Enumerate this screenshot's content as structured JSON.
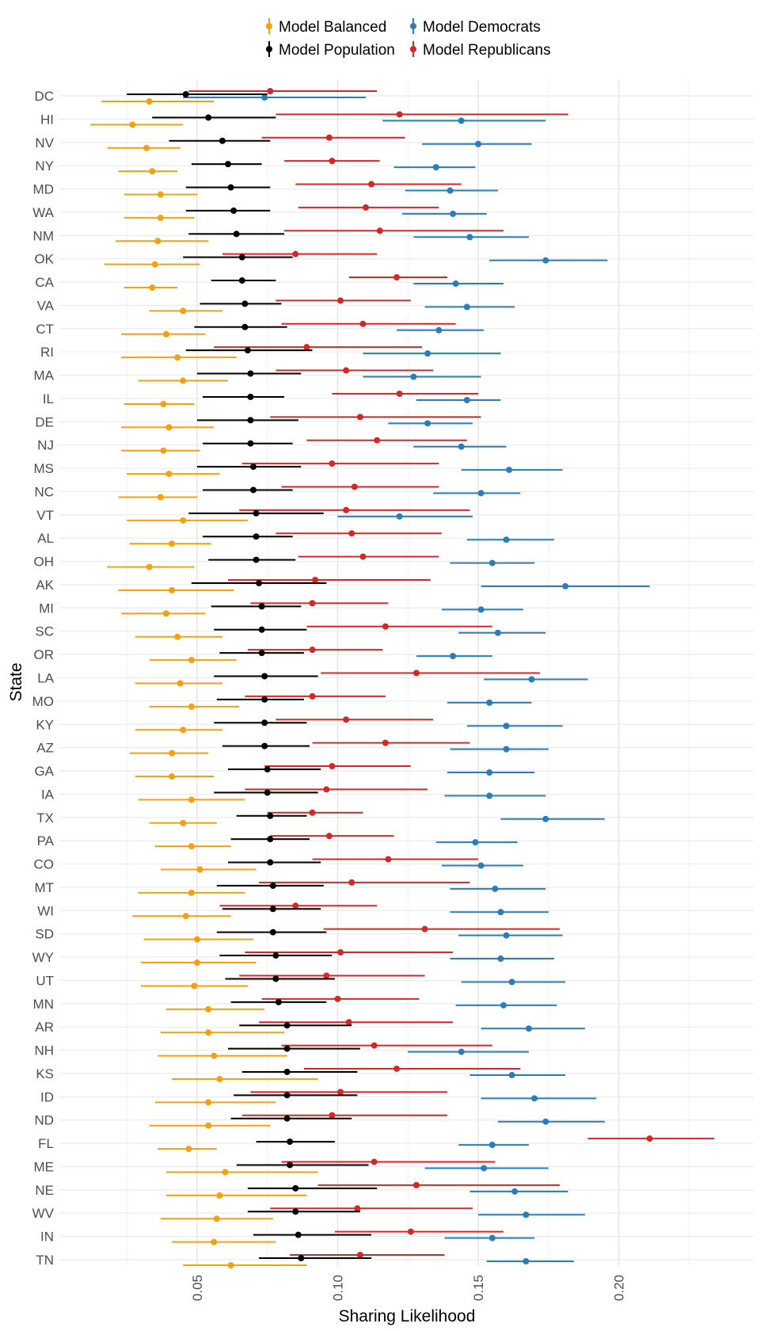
{
  "chart_data": {
    "type": "forest",
    "xlabel": "Sharing Likelihood",
    "ylabel": "State",
    "xlim": [
      0.001,
      0.248
    ],
    "x_ticks": [
      "0.05",
      "0.10",
      "0.15",
      "0.20"
    ],
    "legend_position": "top",
    "series": [
      {
        "key": "balanced",
        "name": "Model Balanced",
        "color": "#F5A010"
      },
      {
        "key": "democrats",
        "name": "Model Democrats",
        "color": "#2A7DB8"
      },
      {
        "key": "population",
        "name": "Model Population",
        "color": "#000000"
      },
      {
        "key": "republicans",
        "name": "Model Republicans",
        "color": "#D62728"
      }
    ],
    "states": [
      {
        "name": "DC",
        "balanced": [
          0.016,
          0.033,
          0.056
        ],
        "population": [
          0.025,
          0.046,
          0.075
        ],
        "democrats": [
          0.045,
          0.074,
          0.11
        ],
        "republicans": [
          0.047,
          0.076,
          0.114
        ]
      },
      {
        "name": "HI",
        "balanced": [
          0.012,
          0.027,
          0.045
        ],
        "population": [
          0.034,
          0.054,
          0.078
        ],
        "democrats": [
          0.116,
          0.144,
          0.174
        ],
        "republicans": [
          0.078,
          0.122,
          0.182
        ]
      },
      {
        "name": "NV",
        "balanced": [
          0.018,
          0.032,
          0.044
        ],
        "population": [
          0.04,
          0.059,
          0.076
        ],
        "democrats": [
          0.13,
          0.15,
          0.169
        ],
        "republicans": [
          0.073,
          0.097,
          0.124
        ]
      },
      {
        "name": "NY",
        "balanced": [
          0.022,
          0.034,
          0.043
        ],
        "population": [
          0.048,
          0.061,
          0.073
        ],
        "democrats": [
          0.12,
          0.135,
          0.149
        ],
        "republicans": [
          0.081,
          0.098,
          0.115
        ]
      },
      {
        "name": "MD",
        "balanced": [
          0.024,
          0.037,
          0.05
        ],
        "population": [
          0.046,
          0.062,
          0.076
        ],
        "democrats": [
          0.124,
          0.14,
          0.157
        ],
        "republicans": [
          0.085,
          0.112,
          0.144
        ]
      },
      {
        "name": "WA",
        "balanced": [
          0.024,
          0.037,
          0.049
        ],
        "population": [
          0.046,
          0.063,
          0.076
        ],
        "democrats": [
          0.123,
          0.141,
          0.153
        ],
        "republicans": [
          0.086,
          0.11,
          0.136
        ]
      },
      {
        "name": "NM",
        "balanced": [
          0.021,
          0.036,
          0.054
        ],
        "population": [
          0.047,
          0.064,
          0.081
        ],
        "democrats": [
          0.127,
          0.147,
          0.168
        ],
        "republicans": [
          0.081,
          0.115,
          0.159
        ]
      },
      {
        "name": "OK",
        "balanced": [
          0.017,
          0.035,
          0.051
        ],
        "population": [
          0.045,
          0.066,
          0.084
        ],
        "democrats": [
          0.154,
          0.174,
          0.196
        ],
        "republicans": [
          0.059,
          0.085,
          0.114
        ]
      },
      {
        "name": "CA",
        "balanced": [
          0.024,
          0.034,
          0.043
        ],
        "population": [
          0.055,
          0.066,
          0.078
        ],
        "democrats": [
          0.127,
          0.142,
          0.159
        ],
        "republicans": [
          0.104,
          0.121,
          0.139
        ]
      },
      {
        "name": "VA",
        "balanced": [
          0.033,
          0.045,
          0.059
        ],
        "population": [
          0.051,
          0.067,
          0.08
        ],
        "democrats": [
          0.131,
          0.146,
          0.163
        ],
        "republicans": [
          0.078,
          0.101,
          0.126
        ]
      },
      {
        "name": "CT",
        "balanced": [
          0.023,
          0.039,
          0.053
        ],
        "population": [
          0.049,
          0.067,
          0.082
        ],
        "democrats": [
          0.121,
          0.136,
          0.152
        ],
        "republicans": [
          0.08,
          0.109,
          0.142
        ]
      },
      {
        "name": "RI",
        "balanced": [
          0.023,
          0.043,
          0.064
        ],
        "population": [
          0.046,
          0.068,
          0.091
        ],
        "democrats": [
          0.109,
          0.132,
          0.158
        ],
        "republicans": [
          0.056,
          0.089,
          0.13
        ]
      },
      {
        "name": "MA",
        "balanced": [
          0.029,
          0.045,
          0.061
        ],
        "population": [
          0.05,
          0.069,
          0.087
        ],
        "democrats": [
          0.109,
          0.127,
          0.151
        ],
        "republicans": [
          0.078,
          0.103,
          0.134
        ]
      },
      {
        "name": "IL",
        "balanced": [
          0.024,
          0.038,
          0.049
        ],
        "population": [
          0.052,
          0.069,
          0.081
        ],
        "democrats": [
          0.128,
          0.146,
          0.158
        ],
        "republicans": [
          0.098,
          0.122,
          0.15
        ]
      },
      {
        "name": "DE",
        "balanced": [
          0.023,
          0.04,
          0.056
        ],
        "population": [
          0.05,
          0.069,
          0.086
        ],
        "democrats": [
          0.118,
          0.132,
          0.148
        ],
        "republicans": [
          0.076,
          0.108,
          0.151
        ]
      },
      {
        "name": "NJ",
        "balanced": [
          0.023,
          0.038,
          0.051
        ],
        "population": [
          0.052,
          0.069,
          0.084
        ],
        "democrats": [
          0.127,
          0.144,
          0.16
        ],
        "republicans": [
          0.089,
          0.114,
          0.146
        ]
      },
      {
        "name": "MS",
        "balanced": [
          0.025,
          0.04,
          0.058
        ],
        "population": [
          0.05,
          0.07,
          0.087
        ],
        "democrats": [
          0.144,
          0.161,
          0.18
        ],
        "republicans": [
          0.066,
          0.098,
          0.136
        ]
      },
      {
        "name": "NC",
        "balanced": [
          0.022,
          0.037,
          0.05
        ],
        "population": [
          0.052,
          0.07,
          0.084
        ],
        "democrats": [
          0.134,
          0.151,
          0.165
        ],
        "republicans": [
          0.08,
          0.106,
          0.136
        ]
      },
      {
        "name": "VT",
        "balanced": [
          0.025,
          0.045,
          0.068
        ],
        "population": [
          0.047,
          0.071,
          0.095
        ],
        "democrats": [
          0.1,
          0.122,
          0.148
        ],
        "republicans": [
          0.065,
          0.103,
          0.147
        ]
      },
      {
        "name": "AL",
        "balanced": [
          0.026,
          0.041,
          0.055
        ],
        "population": [
          0.052,
          0.071,
          0.084
        ],
        "democrats": [
          0.146,
          0.16,
          0.177
        ],
        "republicans": [
          0.078,
          0.105,
          0.137
        ]
      },
      {
        "name": "OH",
        "balanced": [
          0.018,
          0.033,
          0.049
        ],
        "population": [
          0.054,
          0.071,
          0.085
        ],
        "democrats": [
          0.14,
          0.155,
          0.17
        ],
        "republicans": [
          0.086,
          0.109,
          0.136
        ]
      },
      {
        "name": "AK",
        "balanced": [
          0.022,
          0.041,
          0.063
        ],
        "population": [
          0.048,
          0.072,
          0.096
        ],
        "democrats": [
          0.151,
          0.181,
          0.211
        ],
        "republicans": [
          0.061,
          0.092,
          0.133
        ]
      },
      {
        "name": "MI",
        "balanced": [
          0.023,
          0.039,
          0.053
        ],
        "population": [
          0.055,
          0.073,
          0.087
        ],
        "democrats": [
          0.137,
          0.151,
          0.166
        ],
        "republicans": [
          0.069,
          0.091,
          0.118
        ]
      },
      {
        "name": "SC",
        "balanced": [
          0.028,
          0.043,
          0.059
        ],
        "population": [
          0.056,
          0.073,
          0.089
        ],
        "democrats": [
          0.143,
          0.157,
          0.174
        ],
        "republicans": [
          0.089,
          0.117,
          0.155
        ]
      },
      {
        "name": "OR",
        "balanced": [
          0.033,
          0.048,
          0.064
        ],
        "population": [
          0.058,
          0.073,
          0.088
        ],
        "democrats": [
          0.128,
          0.141,
          0.155
        ],
        "republicans": [
          0.068,
          0.091,
          0.116
        ]
      },
      {
        "name": "LA",
        "balanced": [
          0.028,
          0.044,
          0.059
        ],
        "population": [
          0.056,
          0.074,
          0.093
        ],
        "democrats": [
          0.152,
          0.169,
          0.189
        ],
        "republicans": [
          0.094,
          0.128,
          0.172
        ]
      },
      {
        "name": "MO",
        "balanced": [
          0.033,
          0.048,
          0.065
        ],
        "population": [
          0.057,
          0.074,
          0.088
        ],
        "democrats": [
          0.139,
          0.154,
          0.169
        ],
        "republicans": [
          0.067,
          0.091,
          0.117
        ]
      },
      {
        "name": "KY",
        "balanced": [
          0.028,
          0.045,
          0.059
        ],
        "population": [
          0.056,
          0.074,
          0.089
        ],
        "democrats": [
          0.146,
          0.16,
          0.18
        ],
        "republicans": [
          0.078,
          0.103,
          0.134
        ]
      },
      {
        "name": "AZ",
        "balanced": [
          0.026,
          0.041,
          0.054
        ],
        "population": [
          0.059,
          0.074,
          0.09
        ],
        "democrats": [
          0.14,
          0.16,
          0.175
        ],
        "republicans": [
          0.091,
          0.117,
          0.147
        ]
      },
      {
        "name": "GA",
        "balanced": [
          0.028,
          0.041,
          0.056
        ],
        "population": [
          0.061,
          0.075,
          0.094
        ],
        "democrats": [
          0.139,
          0.154,
          0.17
        ],
        "republicans": [
          0.074,
          0.098,
          0.126
        ]
      },
      {
        "name": "IA",
        "balanced": [
          0.029,
          0.048,
          0.067
        ],
        "population": [
          0.056,
          0.075,
          0.093
        ],
        "democrats": [
          0.138,
          0.154,
          0.174
        ],
        "republicans": [
          0.067,
          0.096,
          0.132
        ]
      },
      {
        "name": "TX",
        "balanced": [
          0.033,
          0.045,
          0.057
        ],
        "population": [
          0.064,
          0.076,
          0.089
        ],
        "democrats": [
          0.158,
          0.174,
          0.195
        ],
        "republicans": [
          0.075,
          0.091,
          0.109
        ]
      },
      {
        "name": "PA",
        "balanced": [
          0.035,
          0.048,
          0.062
        ],
        "population": [
          0.062,
          0.076,
          0.09
        ],
        "democrats": [
          0.135,
          0.149,
          0.164
        ],
        "republicans": [
          0.076,
          0.097,
          0.12
        ]
      },
      {
        "name": "CO",
        "balanced": [
          0.037,
          0.051,
          0.071
        ],
        "population": [
          0.061,
          0.076,
          0.094
        ],
        "democrats": [
          0.137,
          0.151,
          0.166
        ],
        "republicans": [
          0.091,
          0.118,
          0.15
        ]
      },
      {
        "name": "MT",
        "balanced": [
          0.029,
          0.048,
          0.067
        ],
        "population": [
          0.057,
          0.077,
          0.095
        ],
        "democrats": [
          0.14,
          0.156,
          0.174
        ],
        "republicans": [
          0.072,
          0.105,
          0.147
        ]
      },
      {
        "name": "WI",
        "balanced": [
          0.027,
          0.046,
          0.062
        ],
        "population": [
          0.059,
          0.077,
          0.094
        ],
        "democrats": [
          0.14,
          0.158,
          0.175
        ],
        "republicans": [
          0.058,
          0.085,
          0.114
        ]
      },
      {
        "name": "SD",
        "balanced": [
          0.031,
          0.05,
          0.07
        ],
        "population": [
          0.057,
          0.077,
          0.096
        ],
        "democrats": [
          0.143,
          0.16,
          0.18
        ],
        "republicans": [
          0.095,
          0.131,
          0.179
        ]
      },
      {
        "name": "WY",
        "balanced": [
          0.03,
          0.05,
          0.071
        ],
        "population": [
          0.058,
          0.078,
          0.098
        ],
        "democrats": [
          0.14,
          0.158,
          0.177
        ],
        "republicans": [
          0.067,
          0.101,
          0.141
        ]
      },
      {
        "name": "UT",
        "balanced": [
          0.03,
          0.049,
          0.068
        ],
        "population": [
          0.06,
          0.078,
          0.099
        ],
        "democrats": [
          0.144,
          0.162,
          0.181
        ],
        "republicans": [
          0.065,
          0.096,
          0.131
        ]
      },
      {
        "name": "MN",
        "balanced": [
          0.039,
          0.054,
          0.074
        ],
        "population": [
          0.062,
          0.079,
          0.096
        ],
        "democrats": [
          0.142,
          0.159,
          0.178
        ],
        "republicans": [
          0.073,
          0.1,
          0.129
        ]
      },
      {
        "name": "AR",
        "balanced": [
          0.037,
          0.054,
          0.081
        ],
        "population": [
          0.065,
          0.082,
          0.105
        ],
        "democrats": [
          0.151,
          0.168,
          0.188
        ],
        "republicans": [
          0.072,
          0.104,
          0.141
        ]
      },
      {
        "name": "NH",
        "balanced": [
          0.036,
          0.056,
          0.082
        ],
        "population": [
          0.061,
          0.082,
          0.108
        ],
        "democrats": [
          0.125,
          0.144,
          0.168
        ],
        "republicans": [
          0.08,
          0.113,
          0.155
        ]
      },
      {
        "name": "KS",
        "balanced": [
          0.041,
          0.058,
          0.093
        ],
        "population": [
          0.066,
          0.082,
          0.107
        ],
        "democrats": [
          0.147,
          0.162,
          0.181
        ],
        "republicans": [
          0.088,
          0.121,
          0.165
        ]
      },
      {
        "name": "ID",
        "balanced": [
          0.035,
          0.054,
          0.078
        ],
        "population": [
          0.063,
          0.082,
          0.107
        ],
        "democrats": [
          0.151,
          0.17,
          0.192
        ],
        "republicans": [
          0.069,
          0.101,
          0.139
        ]
      },
      {
        "name": "ND",
        "balanced": [
          0.033,
          0.054,
          0.076
        ],
        "population": [
          0.062,
          0.082,
          0.105
        ],
        "democrats": [
          0.157,
          0.174,
          0.195
        ],
        "republicans": [
          0.066,
          0.098,
          0.139
        ]
      },
      {
        "name": "FL",
        "balanced": [
          0.036,
          0.047,
          0.057
        ],
        "population": [
          0.071,
          0.083,
          0.099
        ],
        "democrats": [
          0.143,
          0.155,
          0.168
        ],
        "republicans": [
          0.189,
          0.211,
          0.234
        ]
      },
      {
        "name": "ME",
        "balanced": [
          0.039,
          0.06,
          0.093
        ],
        "population": [
          0.064,
          0.083,
          0.111
        ],
        "democrats": [
          0.131,
          0.152,
          0.175
        ],
        "republicans": [
          0.08,
          0.113,
          0.156
        ]
      },
      {
        "name": "NE",
        "balanced": [
          0.039,
          0.058,
          0.089
        ],
        "population": [
          0.068,
          0.085,
          0.114
        ],
        "democrats": [
          0.147,
          0.163,
          0.182
        ],
        "republicans": [
          0.093,
          0.128,
          0.179
        ]
      },
      {
        "name": "WV",
        "balanced": [
          0.037,
          0.057,
          0.077
        ],
        "population": [
          0.068,
          0.085,
          0.108
        ],
        "democrats": [
          0.15,
          0.167,
          0.188
        ],
        "republicans": [
          0.076,
          0.107,
          0.148
        ]
      },
      {
        "name": "IN",
        "balanced": [
          0.041,
          0.056,
          0.078
        ],
        "population": [
          0.07,
          0.086,
          0.112
        ],
        "democrats": [
          0.138,
          0.155,
          0.17
        ],
        "republicans": [
          0.099,
          0.126,
          0.159
        ]
      },
      {
        "name": "TN",
        "balanced": [
          0.045,
          0.062,
          0.089
        ],
        "population": [
          0.072,
          0.087,
          0.112
        ],
        "democrats": [
          0.153,
          0.167,
          0.184
        ],
        "republicans": [
          0.083,
          0.108,
          0.138
        ]
      }
    ]
  }
}
